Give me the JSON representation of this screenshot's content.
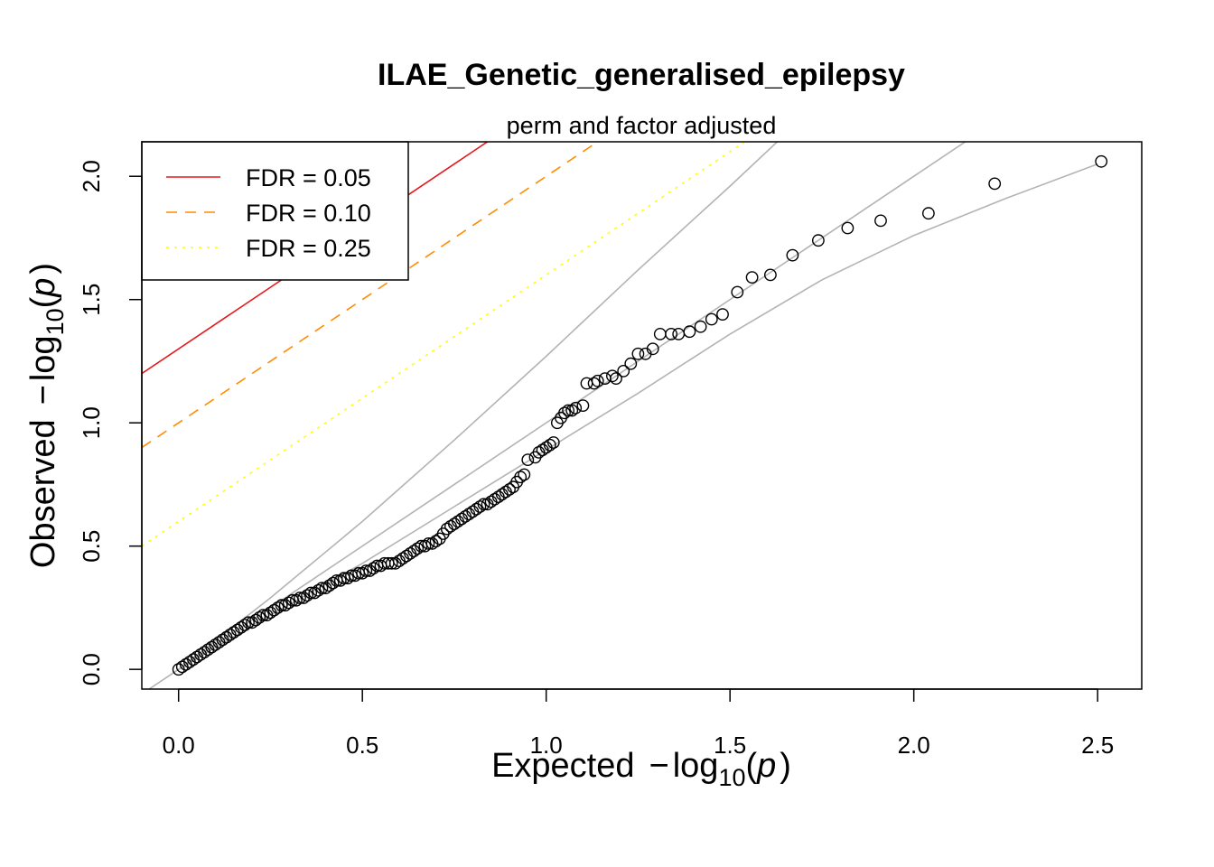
{
  "chart_data": {
    "type": "scatter",
    "title": "ILAE_Genetic_generalised_epilepsy",
    "subtitle": "perm and factor adjusted",
    "xlabel": {
      "prefix": "Expected",
      "minus": "−",
      "log": "log",
      "base": "10",
      "open": "(",
      "var": "p",
      "close": ")"
    },
    "ylabel": {
      "prefix": "Observed",
      "minus": "−",
      "log": "log",
      "base": "10",
      "open": "(",
      "var": "p",
      "close": ")"
    },
    "xlim": [
      -0.1,
      2.62
    ],
    "ylim": [
      -0.08,
      2.14
    ],
    "x_ticks": [
      {
        "value": 0.0,
        "label": "0.0"
      },
      {
        "value": 0.5,
        "label": "0.5"
      },
      {
        "value": 1.0,
        "label": "1.0"
      },
      {
        "value": 1.5,
        "label": "1.5"
      },
      {
        "value": 2.0,
        "label": "2.0"
      },
      {
        "value": 2.5,
        "label": "2.5"
      }
    ],
    "y_ticks": [
      {
        "value": 0.0,
        "label": "0.0"
      },
      {
        "value": 0.5,
        "label": "0.5"
      },
      {
        "value": 1.0,
        "label": "1.0"
      },
      {
        "value": 1.5,
        "label": "1.5"
      },
      {
        "value": 2.0,
        "label": "2.0"
      }
    ],
    "legend": {
      "position": "top-left",
      "entries": [
        {
          "label": "FDR = 0.05",
          "color": "#e41a1c",
          "dash": "solid"
        },
        {
          "label": "FDR = 0.10",
          "color": "#ff8c00",
          "dash": "dashed"
        },
        {
          "label": "FDR = 0.25",
          "color": "#ffff00",
          "dash": "dotted"
        }
      ]
    },
    "fdr_lines": [
      {
        "label": "FDR = 0.05",
        "intercept": 1.3,
        "slope": 1,
        "color": "#e41a1c"
      },
      {
        "label": "FDR = 0.10",
        "intercept": 1.0,
        "slope": 1,
        "color": "#ff8c00"
      },
      {
        "label": "FDR = 0.25",
        "intercept": 0.6,
        "slope": 1,
        "color": "#ffff00"
      }
    ],
    "reference": {
      "identity_color": "#b3b3b3",
      "upper_band": [
        [
          0.0,
          0.0
        ],
        [
          0.25,
          0.29
        ],
        [
          0.5,
          0.6
        ],
        [
          0.75,
          0.93
        ],
        [
          1.0,
          1.27
        ],
        [
          1.25,
          1.62
        ],
        [
          1.5,
          1.96
        ],
        [
          1.75,
          2.31
        ]
      ],
      "lower_band": [
        [
          0.0,
          0.0
        ],
        [
          0.25,
          0.22
        ],
        [
          0.5,
          0.43
        ],
        [
          0.75,
          0.66
        ],
        [
          1.0,
          0.89
        ],
        [
          1.25,
          1.12
        ],
        [
          1.5,
          1.36
        ],
        [
          1.75,
          1.58
        ],
        [
          2.0,
          1.76
        ],
        [
          2.25,
          1.91
        ],
        [
          2.5,
          2.05
        ]
      ]
    },
    "series": [
      {
        "x": [
          2.51,
          2.22,
          2.04,
          1.91,
          1.82,
          1.74,
          1.67,
          1.61,
          1.56,
          1.52,
          1.48,
          1.45,
          1.42,
          1.39,
          1.36,
          1.34,
          1.31,
          1.29,
          1.27,
          1.25,
          1.23,
          1.21,
          1.19,
          1.18,
          1.16,
          1.14,
          1.13,
          1.11,
          1.1,
          1.08,
          1.07,
          1.06,
          1.05,
          1.04,
          1.03,
          1.02,
          1.01,
          1.0,
          0.99,
          0.98,
          0.97,
          0.95,
          0.94,
          0.93,
          0.92,
          0.91,
          0.9,
          0.89,
          0.88,
          0.87,
          0.86,
          0.85,
          0.84,
          0.83,
          0.82,
          0.81,
          0.8,
          0.79,
          0.78,
          0.77,
          0.76,
          0.75,
          0.74,
          0.73,
          0.72,
          0.71,
          0.7,
          0.69,
          0.68,
          0.67,
          0.66,
          0.65,
          0.64,
          0.63,
          0.62,
          0.61,
          0.6,
          0.59,
          0.58,
          0.57,
          0.56,
          0.55,
          0.54,
          0.53,
          0.52,
          0.51,
          0.5,
          0.49,
          0.48,
          0.47,
          0.46,
          0.45,
          0.44,
          0.43,
          0.42,
          0.41,
          0.4,
          0.39,
          0.38,
          0.37,
          0.36,
          0.35,
          0.34,
          0.33,
          0.32,
          0.31,
          0.3,
          0.29,
          0.28,
          0.27,
          0.26,
          0.25,
          0.24,
          0.23,
          0.22,
          0.21,
          0.2,
          0.19,
          0.18,
          0.17,
          0.16,
          0.15,
          0.14,
          0.13,
          0.12,
          0.11,
          0.1,
          0.09,
          0.08,
          0.07,
          0.06,
          0.05,
          0.04,
          0.03,
          0.02,
          0.01,
          0.0
        ],
        "y": [
          2.06,
          1.97,
          1.85,
          1.82,
          1.79,
          1.74,
          1.68,
          1.6,
          1.59,
          1.53,
          1.44,
          1.42,
          1.39,
          1.37,
          1.36,
          1.36,
          1.36,
          1.3,
          1.28,
          1.28,
          1.24,
          1.21,
          1.18,
          1.19,
          1.18,
          1.17,
          1.16,
          1.16,
          1.07,
          1.06,
          1.05,
          1.05,
          1.04,
          1.02,
          1.0,
          0.92,
          0.91,
          0.9,
          0.89,
          0.88,
          0.86,
          0.85,
          0.79,
          0.78,
          0.76,
          0.74,
          0.73,
          0.72,
          0.71,
          0.7,
          0.69,
          0.68,
          0.67,
          0.67,
          0.66,
          0.65,
          0.64,
          0.63,
          0.62,
          0.61,
          0.6,
          0.59,
          0.58,
          0.57,
          0.55,
          0.53,
          0.52,
          0.51,
          0.51,
          0.5,
          0.5,
          0.49,
          0.48,
          0.47,
          0.46,
          0.45,
          0.44,
          0.43,
          0.43,
          0.43,
          0.43,
          0.42,
          0.42,
          0.41,
          0.4,
          0.4,
          0.39,
          0.39,
          0.38,
          0.38,
          0.37,
          0.37,
          0.36,
          0.36,
          0.35,
          0.34,
          0.33,
          0.33,
          0.32,
          0.31,
          0.31,
          0.3,
          0.29,
          0.29,
          0.28,
          0.28,
          0.27,
          0.26,
          0.26,
          0.25,
          0.24,
          0.23,
          0.22,
          0.22,
          0.21,
          0.2,
          0.19,
          0.19,
          0.18,
          0.17,
          0.16,
          0.15,
          0.14,
          0.13,
          0.12,
          0.11,
          0.1,
          0.09,
          0.08,
          0.07,
          0.06,
          0.05,
          0.04,
          0.03,
          0.02,
          0.01,
          0.0
        ]
      }
    ]
  }
}
